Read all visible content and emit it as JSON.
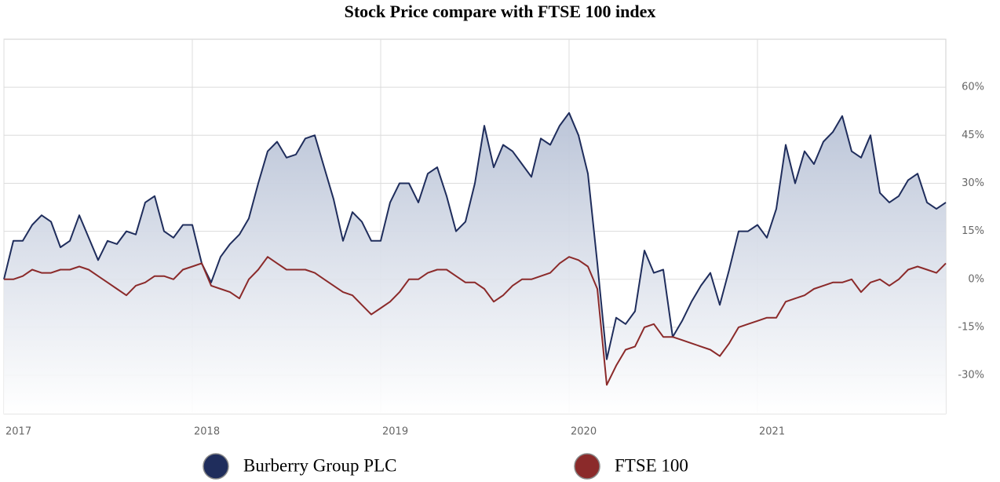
{
  "chart_data": {
    "type": "line",
    "title": "Stock Price compare with FTSE 100 index",
    "x": [
      2017,
      2017.05,
      2017.1,
      2017.15,
      2017.2,
      2017.25,
      2017.3,
      2017.35,
      2017.4,
      2017.45,
      2017.5,
      2017.55,
      2017.6,
      2017.65,
      2017.7,
      2017.75,
      2017.8,
      2017.85,
      2017.9,
      2017.95,
      2018,
      2018.05,
      2018.1,
      2018.15,
      2018.2,
      2018.25,
      2018.3,
      2018.35,
      2018.4,
      2018.45,
      2018.5,
      2018.55,
      2018.6,
      2018.65,
      2018.7,
      2018.75,
      2018.8,
      2018.85,
      2018.9,
      2018.95,
      2019,
      2019.05,
      2019.1,
      2019.15,
      2019.2,
      2019.25,
      2019.3,
      2019.35,
      2019.4,
      2019.45,
      2019.5,
      2019.55,
      2019.6,
      2019.65,
      2019.7,
      2019.75,
      2019.8,
      2019.85,
      2019.9,
      2019.95,
      2020,
      2020.05,
      2020.1,
      2020.15,
      2020.2,
      2020.25,
      2020.3,
      2020.35,
      2020.4,
      2020.45,
      2020.5,
      2020.55,
      2020.6,
      2020.65,
      2020.7,
      2020.75,
      2020.8,
      2020.85,
      2020.9,
      2020.95,
      2021,
      2021.05,
      2021.1,
      2021.15,
      2021.2,
      2021.25,
      2021.3,
      2021.35,
      2021.4,
      2021.45,
      2021.5,
      2021.55,
      2021.6,
      2021.65,
      2021.7,
      2021.75,
      2021.8,
      2021.85,
      2021.9,
      2021.95,
      2022
    ],
    "series": [
      {
        "name": "Burberry Group PLC",
        "color": "#1f2d5c",
        "values": [
          0,
          12,
          12,
          17,
          20,
          18,
          10,
          12,
          20,
          13,
          6,
          12,
          11,
          15,
          14,
          24,
          26,
          15,
          13,
          17,
          17,
          5,
          -1,
          7,
          11,
          14,
          19,
          30,
          40,
          43,
          38,
          39,
          44,
          45,
          35,
          25,
          12,
          21,
          18,
          12,
          12,
          24,
          30,
          30,
          24,
          33,
          35,
          26,
          15,
          18,
          30,
          48,
          35,
          42,
          40,
          36,
          32,
          44,
          42,
          48,
          52,
          45,
          33,
          5,
          -25,
          -12,
          -14,
          -10,
          9,
          2,
          3,
          -18,
          -13,
          -7,
          -2,
          2,
          -8,
          3,
          15,
          15,
          17,
          13,
          22,
          42,
          30,
          40,
          36,
          43,
          46,
          51,
          40,
          38,
          45,
          27,
          24,
          26,
          31,
          33,
          24,
          22,
          24
        ]
      },
      {
        "name": "FTSE 100",
        "color": "#8b2a2a",
        "values": [
          0,
          0,
          1,
          3,
          2,
          2,
          3,
          3,
          4,
          3,
          1,
          -1,
          -3,
          -5,
          -2,
          -1,
          1,
          1,
          0,
          3,
          4,
          5,
          -2,
          -3,
          -4,
          -6,
          0,
          3,
          7,
          5,
          3,
          3,
          3,
          2,
          0,
          -2,
          -4,
          -5,
          -8,
          -11,
          -9,
          -7,
          -4,
          0,
          0,
          2,
          3,
          3,
          1,
          -1,
          -1,
          -3,
          -7,
          -5,
          -2,
          0,
          0,
          1,
          2,
          5,
          7,
          6,
          4,
          -3,
          -33,
          -27,
          -22,
          -21,
          -15,
          -14,
          -18,
          -18,
          -19,
          -20,
          -21,
          -22,
          -24,
          -20,
          -15,
          -14,
          -13,
          -12,
          -12,
          -7,
          -6,
          -5,
          -3,
          -2,
          -1,
          -1,
          0,
          -4,
          -1,
          0,
          -2,
          0,
          3,
          4,
          3,
          2,
          5
        ]
      }
    ],
    "xlim": [
      2017,
      2022
    ],
    "xticks": [
      2017,
      2018,
      2019,
      2020,
      2021
    ],
    "ylim": [
      -42,
      75
    ],
    "yticks": [
      {
        "value": -30,
        "label": "-30%"
      },
      {
        "value": -15,
        "label": "-15%"
      },
      {
        "value": 0,
        "label": "0%"
      },
      {
        "value": 15,
        "label": "15%"
      },
      {
        "value": 30,
        "label": "30%"
      },
      {
        "value": 45,
        "label": "45%"
      },
      {
        "value": 60,
        "label": "60%"
      }
    ],
    "grid": true,
    "legend": "bottom"
  }
}
